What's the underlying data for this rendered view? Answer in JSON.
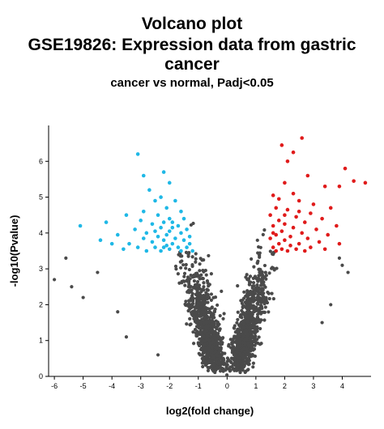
{
  "chart_data": {
    "type": "scatter",
    "title": "Volcano plot",
    "subtitle_lines": [
      "GSE19826: Expression data from gastric",
      "cancer"
    ],
    "subtitle2": "cancer vs normal, Padj<0.05",
    "xlabel": "log2(fold change)",
    "ylabel": "-log10(Pvalue)",
    "xlim": [
      -6.2,
      5.0
    ],
    "ylim": [
      0,
      7.0
    ],
    "xticks": [
      -6,
      -5,
      -4,
      -3,
      -2,
      -1,
      0,
      1,
      2,
      3,
      4
    ],
    "yticks": [
      0,
      1,
      2,
      3,
      4,
      5,
      6
    ],
    "grid": false,
    "legend": "none",
    "colors": {
      "not_significant": "#4a4a4a",
      "down_regulated": "#1fb8e6",
      "up_regulated": "#e01b1b"
    },
    "series": [
      {
        "color_key": "down_regulated",
        "points": [
          [
            -3.1,
            6.2
          ],
          [
            -2.9,
            5.6
          ],
          [
            -2.2,
            5.7
          ],
          [
            -2.0,
            5.4
          ],
          [
            -2.7,
            5.2
          ],
          [
            -2.3,
            5.0
          ],
          [
            -2.5,
            4.9
          ],
          [
            -1.8,
            4.9
          ],
          [
            -2.1,
            4.7
          ],
          [
            -2.9,
            4.6
          ],
          [
            -1.6,
            4.6
          ],
          [
            -3.5,
            4.5
          ],
          [
            -2.4,
            4.5
          ],
          [
            -2.0,
            4.4
          ],
          [
            -1.5,
            4.4
          ],
          [
            -3.0,
            4.35
          ],
          [
            -2.2,
            4.3
          ],
          [
            -1.9,
            4.3
          ],
          [
            -4.2,
            4.3
          ],
          [
            -2.6,
            4.25
          ],
          [
            -1.7,
            4.2
          ],
          [
            -5.1,
            4.2
          ],
          [
            -2.3,
            4.15
          ],
          [
            -1.4,
            4.1
          ],
          [
            -3.2,
            4.1
          ],
          [
            -2.0,
            4.05
          ],
          [
            -2.8,
            4.0
          ],
          [
            -1.6,
            4.0
          ],
          [
            -2.1,
            3.95
          ],
          [
            -3.8,
            3.95
          ],
          [
            -1.3,
            3.9
          ],
          [
            -2.4,
            3.9
          ],
          [
            -1.8,
            3.85
          ],
          [
            -4.4,
            3.8
          ],
          [
            -2.9,
            3.85
          ],
          [
            -2.2,
            3.8
          ],
          [
            -1.5,
            3.8
          ],
          [
            -2.6,
            3.75
          ],
          [
            -1.9,
            3.7
          ],
          [
            -3.4,
            3.7
          ],
          [
            -4.0,
            3.7
          ],
          [
            -1.3,
            3.7
          ],
          [
            -2.1,
            3.65
          ],
          [
            -1.7,
            3.6
          ],
          [
            -2.5,
            3.6
          ],
          [
            -3.1,
            3.6
          ],
          [
            -1.4,
            3.6
          ],
          [
            -3.6,
            3.55
          ],
          [
            -2.0,
            3.55
          ],
          [
            -2.3,
            3.5
          ],
          [
            -1.6,
            3.5
          ],
          [
            -2.8,
            3.5
          ],
          [
            -1.2,
            3.5
          ],
          [
            -2.5,
            4.05
          ],
          [
            -1.9,
            4.15
          ],
          [
            -2.2,
            3.6
          ]
        ]
      },
      {
        "color_key": "up_regulated",
        "points": [
          [
            2.6,
            6.65
          ],
          [
            1.9,
            6.45
          ],
          [
            2.3,
            6.25
          ],
          [
            2.1,
            6.0
          ],
          [
            4.1,
            5.8
          ],
          [
            2.8,
            5.6
          ],
          [
            4.4,
            5.45
          ],
          [
            4.8,
            5.4
          ],
          [
            3.9,
            5.3
          ],
          [
            3.4,
            5.3
          ],
          [
            2.0,
            5.4
          ],
          [
            1.6,
            5.05
          ],
          [
            2.3,
            5.1
          ],
          [
            1.8,
            4.95
          ],
          [
            2.5,
            4.9
          ],
          [
            3.0,
            4.8
          ],
          [
            1.7,
            4.7
          ],
          [
            3.6,
            4.7
          ],
          [
            2.1,
            4.65
          ],
          [
            2.9,
            4.55
          ],
          [
            1.5,
            4.5
          ],
          [
            2.4,
            4.45
          ],
          [
            3.3,
            4.4
          ],
          [
            1.8,
            4.35
          ],
          [
            2.7,
            4.3
          ],
          [
            2.0,
            4.25
          ],
          [
            3.8,
            4.2
          ],
          [
            1.6,
            4.2
          ],
          [
            2.3,
            4.15
          ],
          [
            3.1,
            4.1
          ],
          [
            1.9,
            4.05
          ],
          [
            2.6,
            4.0
          ],
          [
            1.7,
            3.95
          ],
          [
            3.5,
            3.95
          ],
          [
            2.2,
            3.9
          ],
          [
            2.8,
            3.85
          ],
          [
            1.5,
            3.85
          ],
          [
            2.0,
            3.8
          ],
          [
            3.2,
            3.75
          ],
          [
            2.5,
            3.7
          ],
          [
            1.8,
            3.7
          ],
          [
            3.9,
            3.7
          ],
          [
            2.2,
            3.65
          ],
          [
            1.6,
            3.6
          ],
          [
            2.9,
            3.6
          ],
          [
            2.4,
            3.55
          ],
          [
            1.9,
            3.55
          ],
          [
            3.4,
            3.55
          ],
          [
            2.1,
            3.5
          ],
          [
            1.7,
            3.5
          ],
          [
            2.7,
            3.5
          ],
          [
            1.6,
            4.0
          ],
          [
            2.0,
            4.5
          ],
          [
            2.5,
            4.6
          ]
        ]
      }
    ]
  }
}
